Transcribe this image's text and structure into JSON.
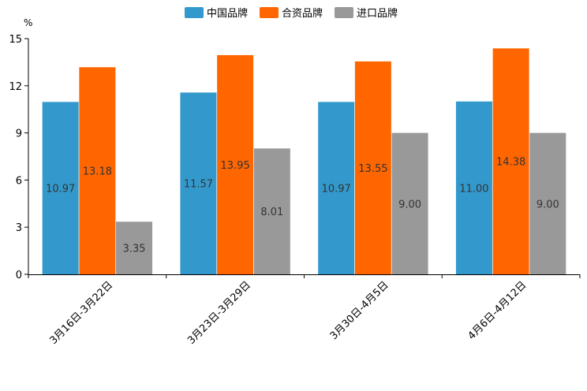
{
  "chart_data": {
    "type": "bar",
    "unit": "%",
    "ylim": [
      0,
      15
    ],
    "yticks": [
      0,
      3,
      6,
      9,
      12,
      15
    ],
    "categories": [
      "3月16日-3月22日",
      "3月23日-3月29日",
      "3月30日-4月5日",
      "4月6日-4月12日"
    ],
    "series": [
      {
        "name": "中国品牌",
        "color": "#3399cc",
        "values": [
          10.97,
          11.57,
          10.97,
          11.0
        ]
      },
      {
        "name": "合资品牌",
        "color": "#ff6600",
        "values": [
          13.18,
          13.95,
          13.55,
          14.38
        ]
      },
      {
        "name": "进口品牌",
        "color": "#999999",
        "values": [
          3.35,
          8.01,
          9.0,
          9.0
        ]
      }
    ],
    "legend_position": "top-center",
    "grid": false
  }
}
